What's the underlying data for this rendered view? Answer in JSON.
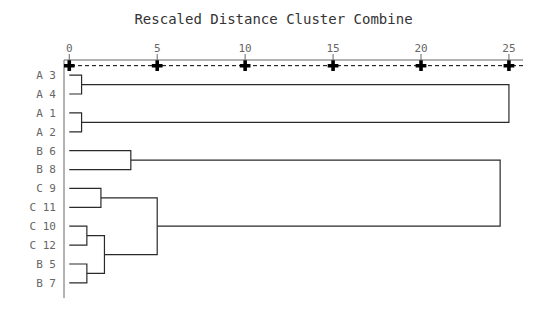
{
  "chart_data": {
    "type": "dendrogram",
    "title": "Rescaled Distance Cluster Combine",
    "categories": [
      "A 3",
      "A 4",
      "A 1",
      "A 2",
      "B 6",
      "B 8",
      "C 9",
      "C 11",
      "C 10",
      "C 12",
      "B 5",
      "B 7"
    ],
    "clusters": [
      {
        "distance": 25.0,
        "children": [
          {
            "distance": 0.7,
            "children": [
              "A 3",
              "A 4"
            ]
          },
          {
            "distance": 0.7,
            "children": [
              "A 1",
              "A 2"
            ]
          }
        ]
      },
      {
        "distance": 24.5,
        "children": [
          {
            "distance": 3.5,
            "children": [
              "B 6",
              "B 8"
            ]
          },
          {
            "distance": 5.0,
            "children": [
              {
                "distance": 1.8,
                "children": [
                  "C 9",
                  "C 11"
                ]
              },
              {
                "distance": 2.0,
                "children": [
                  {
                    "distance": 1.0,
                    "children": [
                      "C 10",
                      "C 12"
                    ]
                  },
                  {
                    "distance": 1.0,
                    "children": [
                      "B 5",
                      "B 7"
                    ]
                  }
                ]
              }
            ]
          }
        ]
      }
    ],
    "color": "#2a2a2a",
    "xlim": [
      -0.3,
      25.8
    ],
    "xticks": [
      0,
      5,
      10,
      15,
      20,
      25
    ],
    "grid": false
  }
}
